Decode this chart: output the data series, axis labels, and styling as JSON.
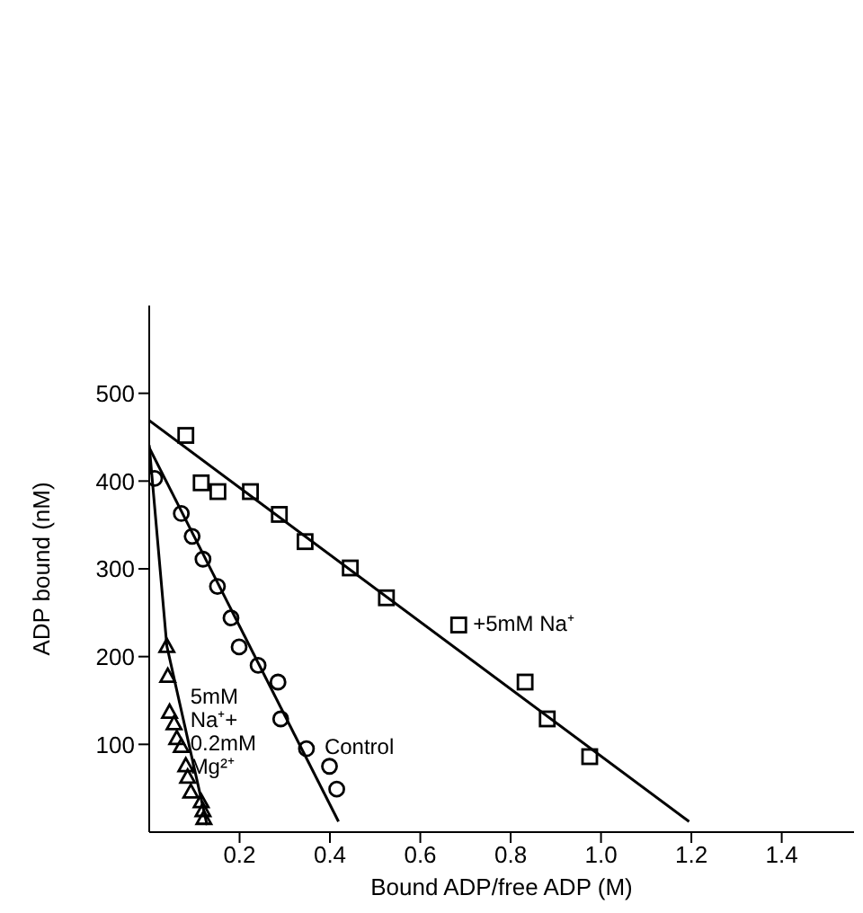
{
  "chart_data": {
    "type": "scatter",
    "xlabel": "Bound ADP/free ADP (M)",
    "ylabel": "ADP bound (nM)",
    "xlim": [
      0,
      1.56
    ],
    "ylim": [
      0,
      600
    ],
    "xticks": [
      0.2,
      0.4,
      0.6,
      0.8,
      {
        "value": 1,
        "label": "1.0"
      },
      1.2,
      1.4
    ],
    "yticks": [
      100,
      200,
      300,
      400,
      500
    ],
    "grid": false,
    "legend": false,
    "series": [
      {
        "name": "+5mM Na⁺",
        "marker": "square",
        "color": "#000000",
        "x": [
          0.081,
          0.115,
          0.152,
          0.224,
          0.288,
          0.345,
          0.445,
          0.525,
          0.685,
          0.832,
          0.881,
          0.975
        ],
        "values": [
          452,
          398,
          388,
          388,
          362,
          331,
          301,
          267,
          236,
          171,
          129,
          86
        ]
      },
      {
        "type": "line",
        "marker": "none",
        "color": "#000000",
        "x": [
          0,
          1.195
        ],
        "values": [
          469,
          12
        ]
      },
      {
        "name": "Control",
        "marker": "circle",
        "color": "#000000",
        "x": [
          0.012,
          0.071,
          0.095,
          0.119,
          0.151,
          0.181,
          0.199,
          0.241,
          0.285,
          0.291,
          0.348,
          0.399,
          0.415
        ],
        "values": [
          403,
          363,
          337,
          311,
          280,
          244,
          211,
          190,
          171,
          129,
          95,
          75,
          49
        ]
      },
      {
        "type": "line",
        "marker": "none",
        "color": "#000000",
        "x": [
          0,
          0.419
        ],
        "values": [
          438,
          12
        ]
      },
      {
        "name": "5mM\nNa⁺+\n0.2mM\nMg²⁺",
        "marker": "triangle",
        "color": "#000000",
        "x": [
          0.039,
          0.041,
          0.045,
          0.055,
          0.061,
          0.071,
          0.081,
          0.085,
          0.092,
          0.115,
          0.119,
          0.121
        ],
        "values": [
          212,
          178,
          137,
          124,
          107,
          98,
          76,
          63,
          46,
          35,
          25,
          16
        ]
      },
      {
        "type": "line",
        "marker": "none",
        "color": "#000000",
        "x": [
          0,
          0.039,
          0.128
        ],
        "values": [
          441,
          212,
          8
        ]
      }
    ]
  }
}
